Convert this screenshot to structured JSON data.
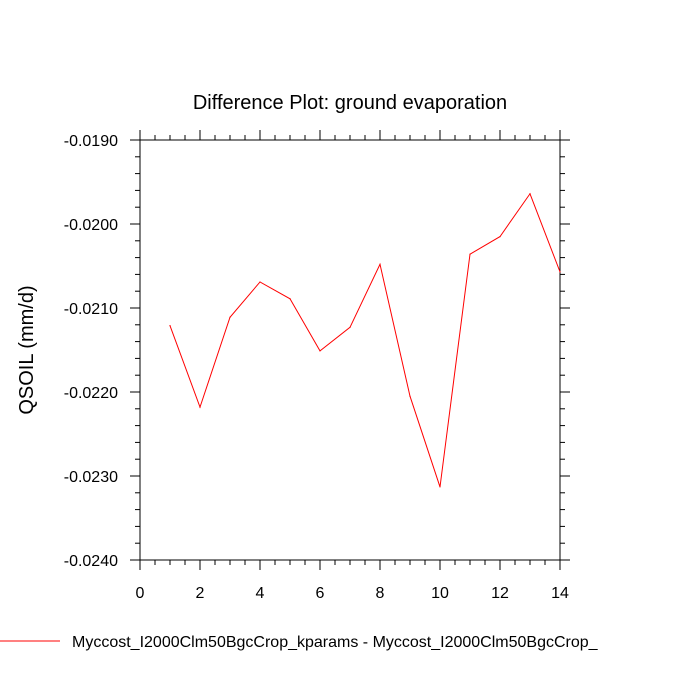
{
  "colors": {
    "series": "#ff0000",
    "axis": "#000000",
    "background": "#ffffff"
  },
  "chart_data": {
    "type": "line",
    "title": "Difference Plot: ground evaporation",
    "xlabel": "",
    "ylabel": "QSOIL  (mm/d)",
    "xlim": [
      0,
      14
    ],
    "ylim": [
      -0.024,
      -0.019
    ],
    "x_ticks": [
      0,
      2,
      4,
      6,
      8,
      10,
      12,
      14
    ],
    "x_tick_labels": [
      "0",
      "2",
      "4",
      "6",
      "8",
      "10",
      "12",
      "14"
    ],
    "y_ticks": [
      -0.019,
      -0.02,
      -0.021,
      -0.022,
      -0.023,
      -0.024
    ],
    "y_tick_labels": [
      "-0.0190",
      "-0.0200",
      "-0.0210",
      "-0.0220",
      "-0.0230",
      "-0.0240"
    ],
    "grid": false,
    "legend_position": "bottom",
    "series": [
      {
        "name": "Myccost_I2000Clm50BgcCrop_kparams - Myccost_I2000Clm50BgcCrop_",
        "color": "#ff0000",
        "x": [
          1,
          2,
          3,
          4,
          5,
          6,
          7,
          8,
          9,
          10,
          11,
          12,
          13,
          14
        ],
        "y": [
          -0.02121,
          -0.02218,
          -0.02111,
          -0.02069,
          -0.02089,
          -0.02151,
          -0.02123,
          -0.02048,
          -0.02205,
          -0.02313,
          -0.02036,
          -0.02015,
          -0.01964,
          -0.02057
        ]
      }
    ]
  }
}
